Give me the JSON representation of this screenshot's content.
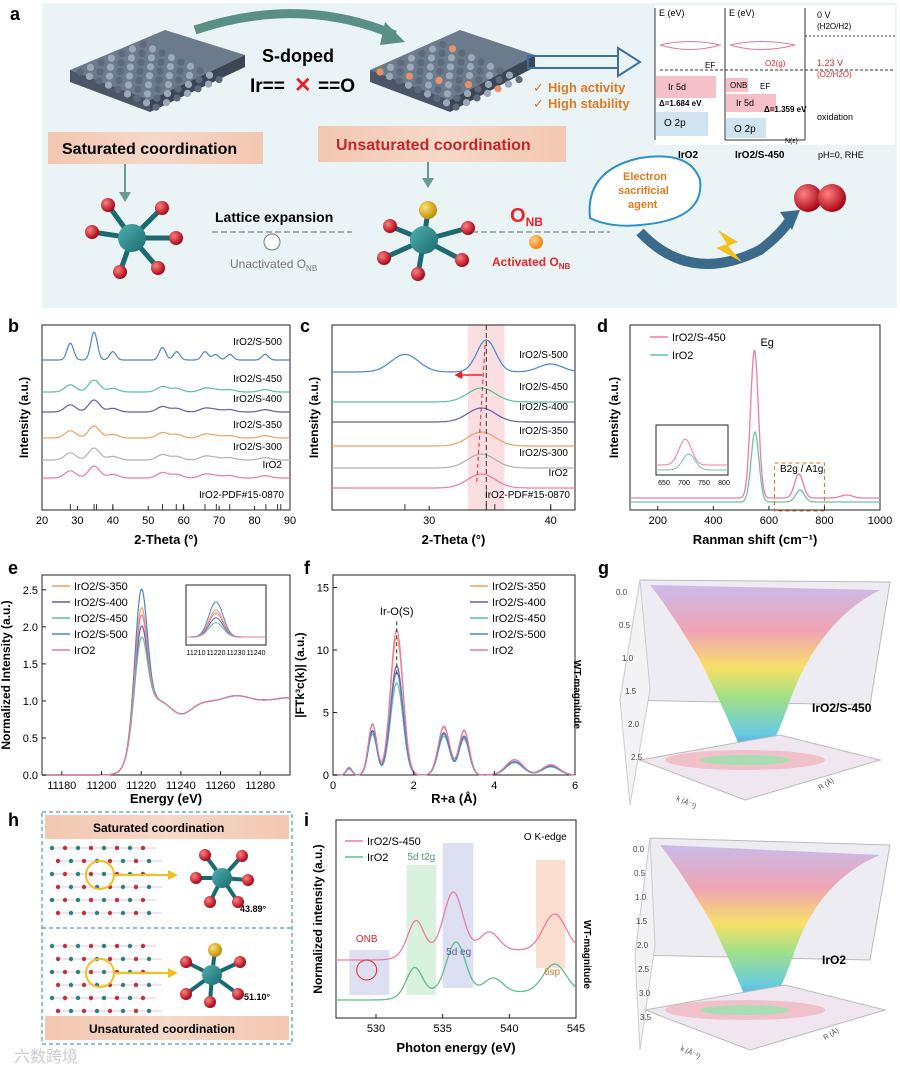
{
  "panel_labels": {
    "a": "a",
    "b": "b",
    "c": "c",
    "d": "d",
    "e": "e",
    "f": "f",
    "g": "g",
    "h": "h",
    "i": "i"
  },
  "panel_a": {
    "s_doped": "S-doped",
    "ir_left": "Ir==",
    "cross": "✕",
    "ir_right": "==O",
    "saturated": "Saturated coordination",
    "unsaturated": "Unsaturated coordination",
    "lattice_expansion": "Lattice expansion",
    "unactivated": "Unactivated O",
    "unactivated_sub": "NB",
    "onb_main": "O",
    "onb_sub": "NB",
    "activated": "Activated O",
    "activated_sub": "NB",
    "benefits": [
      "High activity",
      "High stability"
    ],
    "electron_agent": [
      "Electron",
      "sacrificial",
      "agent"
    ],
    "energy": {
      "e_label": "E (eV)",
      "level_0": "0 V",
      "level_0_sub": "(H2O/H2)",
      "level_123": "1.23 V",
      "level_123_sub": "(O2/H2O)",
      "ef": "EF",
      "o2g": "O2(g)",
      "onb": "ONB",
      "ir5d": "Ir 5d",
      "o2p": "O 2p",
      "delta_left": "Δ=1.684 eV",
      "delta_right": "Δ=1.359 eV",
      "oxidation": "oxidation",
      "nc": "N(ε)",
      "bottom_left": "IrO2",
      "bottom_mid": "IrO2/S-450",
      "bottom_right": "pH=0, RHE"
    }
  },
  "chart_data": [
    {
      "panel": "b",
      "type": "line",
      "xlabel": "2-Theta (°)",
      "ylabel": "Intensity (a.u.)",
      "xlim": [
        20,
        90
      ],
      "xticks": [
        20,
        30,
        40,
        50,
        60,
        70,
        80,
        90
      ],
      "series": [
        {
          "name": "IrO2/S-500",
          "color": "#4a86c8"
        },
        {
          "name": "IrO2/S-450",
          "color": "#5cbf9a"
        },
        {
          "name": "IrO2/S-400",
          "color": "#6a5aa8"
        },
        {
          "name": "IrO2/S-350",
          "color": "#f0a060"
        },
        {
          "name": "IrO2/S-300",
          "color": "#b0b0b0"
        },
        {
          "name": "IrO2",
          "color": "#e97aa0"
        }
      ],
      "reference": "IrO2-PDF#15-0870",
      "reference_ticks": [
        28.0,
        34.7,
        35.4,
        40.0,
        54.0,
        57.9,
        59.9,
        66.0,
        69.2,
        73.0,
        83.2,
        86.5,
        87.4
      ]
    },
    {
      "panel": "c",
      "type": "line",
      "xlabel": "2-Theta (°)",
      "ylabel": "Intensity (a.u.)",
      "xlim": [
        22,
        42
      ],
      "xticks": [
        30,
        40
      ],
      "series": [
        {
          "name": "IrO2/S-500",
          "color": "#4a86c8"
        },
        {
          "name": "IrO2/S-450",
          "color": "#5cbf9a"
        },
        {
          "name": "IrO2/S-400",
          "color": "#6a5aa8"
        },
        {
          "name": "IrO2/S-350",
          "color": "#f0a060"
        },
        {
          "name": "IrO2/S-300",
          "color": "#b0b0b0"
        },
        {
          "name": "IrO2",
          "color": "#e97aa0"
        }
      ],
      "reference": "IrO2-PDF#15-0870",
      "peak_line": 34.7
    },
    {
      "panel": "d",
      "type": "line",
      "xlabel": "Ranman shift (cm⁻¹)",
      "ylabel": "Intensity (a.u.)",
      "xlim": [
        100,
        1000
      ],
      "xticks": [
        200,
        400,
        600,
        800,
        1000
      ],
      "series": [
        {
          "name": "IrO2/S-450",
          "color": "#f07ca0"
        },
        {
          "name": "IrO2",
          "color": "#6cc4a0"
        }
      ],
      "annotations": [
        "Eg",
        "B2g / A1g"
      ],
      "inset_xticks": [
        650,
        700,
        750,
        800
      ]
    },
    {
      "panel": "e",
      "type": "line",
      "xlabel": "Energy (eV)",
      "ylabel": "Normalized Intensity (a.u.)",
      "xlim": [
        11170,
        11295
      ],
      "ylim": [
        0,
        2.7
      ],
      "xticks": [
        11180,
        11200,
        11220,
        11240,
        11260,
        11280
      ],
      "yticks": [
        0.0,
        0.5,
        1.0,
        1.5,
        2.0,
        2.5
      ],
      "series": [
        {
          "name": "IrO2/S-350",
          "color": "#f0a060",
          "peak": 2.35
        },
        {
          "name": "IrO2/S-400",
          "color": "#6a5aa8",
          "peak": 2.1
        },
        {
          "name": "IrO2/S-450",
          "color": "#5cbf9a",
          "peak": 1.95
        },
        {
          "name": "IrO2/S-500",
          "color": "#4a86c8",
          "peak": 2.6
        },
        {
          "name": "IrO2",
          "color": "#e97aa0",
          "peak": 2.25
        }
      ],
      "inset_xticks": [
        11210,
        11220,
        11230,
        11240
      ]
    },
    {
      "panel": "f",
      "type": "line",
      "xlabel": "R+a (Å)",
      "ylabel": "|FTk³c(k)| (a.u.)",
      "xlim": [
        0,
        6
      ],
      "ylim": [
        0,
        16
      ],
      "xticks": [
        0,
        2,
        4,
        6
      ],
      "yticks": [
        0,
        5,
        10,
        15
      ],
      "annotation": "Ir-O(S)",
      "series": [
        {
          "name": "IrO2/S-350",
          "color": "#f0a060",
          "peak": 11.0
        },
        {
          "name": "IrO2/S-400",
          "color": "#6a5aa8",
          "peak": 9.8
        },
        {
          "name": "IrO2/S-450",
          "color": "#5cbf9a",
          "peak": 9.0
        },
        {
          "name": "IrO2/S-500",
          "color": "#4a86c8",
          "peak": 9.5
        },
        {
          "name": "IrO2",
          "color": "#e97aa0",
          "peak": 11.3
        }
      ]
    },
    {
      "panel": "i",
      "type": "line",
      "xlabel": "Photon energy (eV)",
      "ylabel": "Normalized intensity (a.u.)",
      "xlim": [
        527,
        545
      ],
      "xticks": [
        530,
        535,
        540,
        545
      ],
      "series": [
        {
          "name": "IrO2/S-450",
          "color": "#f07ca0"
        },
        {
          "name": "IrO2",
          "color": "#5cbf8a"
        }
      ],
      "annotations": [
        "O K-edge",
        "ONB",
        "5d t2g",
        "5d eg",
        "6sp"
      ]
    }
  ],
  "panel_g": {
    "top_label": "IrO2/S-450",
    "bottom_label": "IrO2",
    "zlabel": "WT-magnitude",
    "top_zticks": [
      "0.0",
      "0.5",
      "1.0",
      "1.5",
      "2.0",
      "2.5"
    ],
    "bottom_zticks": [
      "0.0",
      "0.5",
      "1.0",
      "1.5",
      "2.0",
      "2.5",
      "3.0",
      "3.5"
    ],
    "k_label": "k (Å⁻¹)",
    "r_label": "R (Å)"
  },
  "panel_h": {
    "top": "Saturated coordination",
    "bottom": "Unsaturated coordination",
    "angle_top": "43.89°",
    "angle_bottom": "51.10°"
  },
  "watermark": "六数跨境"
}
